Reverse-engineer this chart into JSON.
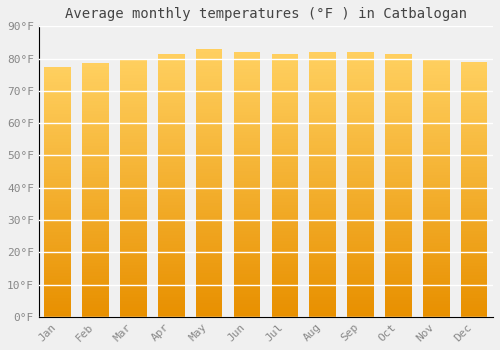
{
  "title": "Average monthly temperatures (°F ) in Catbalogan",
  "months": [
    "Jan",
    "Feb",
    "Mar",
    "Apr",
    "May",
    "Jun",
    "Jul",
    "Aug",
    "Sep",
    "Oct",
    "Nov",
    "Dec"
  ],
  "values": [
    77.5,
    78.5,
    80.0,
    81.5,
    83.0,
    82.0,
    81.5,
    82.0,
    82.0,
    81.5,
    80.0,
    79.0
  ],
  "yticks": [
    0,
    10,
    20,
    30,
    40,
    50,
    60,
    70,
    80,
    90
  ],
  "ytick_labels": [
    "0°F",
    "10°F",
    "20°F",
    "30°F",
    "40°F",
    "50°F",
    "60°F",
    "70°F",
    "80°F",
    "90°F"
  ],
  "ylim": [
    0,
    90
  ],
  "background_color": "#f0f0f0",
  "grid_color": "#ffffff",
  "title_fontsize": 10,
  "tick_fontsize": 8,
  "color_bottom": "#E89000",
  "color_top": "#FFD060",
  "bar_width": 0.7
}
